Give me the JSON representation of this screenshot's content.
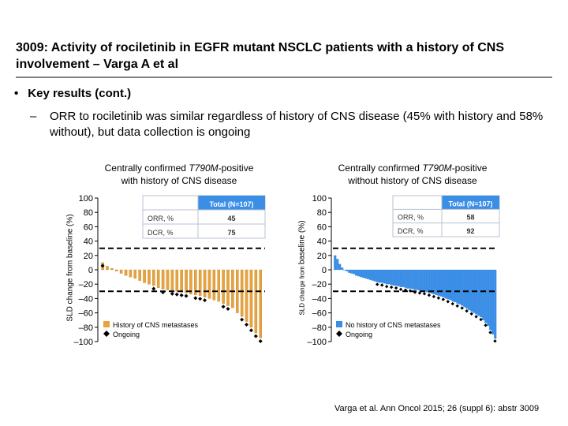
{
  "title": "3009: Activity of rociletinib in EGFR mutant NSCLC patients with a history of CNS involvement – Varga A et al",
  "bullet": "Key results (cont.)",
  "sub_bullet": "ORR to rociletinib was similar regardless of history of CNS disease (45% with history and 58% without), but data collection is ongoing",
  "citation": "Varga et al. Ann Oncol 2015; 26 (suppl 6): abstr 3009",
  "chart_data": [
    {
      "type": "bar",
      "title_prefix": "Centrally confirmed ",
      "title_italic": "T790M",
      "title_suffix": "-positive",
      "title_line2": "with history of CNS disease",
      "ylabel": "SLD change from baseline (%)",
      "ylim": [
        -100,
        100
      ],
      "yticks": [
        "100",
        "80",
        "60",
        "40",
        "20",
        "0",
        "–20",
        "–40",
        "–60",
        "–80",
        "–100"
      ],
      "reference_lines": [
        30,
        -30
      ],
      "legend": [
        "History of CNS metastases",
        "Ongoing"
      ],
      "bar_color": "#E8A33C",
      "series": [
        {
          "name": "History of CNS metastases",
          "values": [
            10,
            5,
            2,
            -2,
            -5,
            -8,
            -10,
            -12,
            -15,
            -18,
            -20,
            -22,
            -25,
            -27,
            -28,
            -29,
            -30,
            -31,
            -32,
            -34,
            -35,
            -36,
            -38,
            -40,
            -42,
            -44,
            -47,
            -50,
            -53,
            -60,
            -65,
            -72,
            -80,
            -88,
            -95
          ]
        }
      ],
      "ongoing": [
        1,
        0,
        0,
        0,
        0,
        0,
        0,
        0,
        0,
        0,
        0,
        1,
        0,
        1,
        0,
        1,
        1,
        1,
        1,
        0,
        1,
        1,
        1,
        0,
        0,
        0,
        1,
        1,
        0,
        0,
        1,
        1,
        1,
        1,
        1
      ],
      "table": {
        "header": "Total (N=107)",
        "rows": [
          {
            "label": "ORR, %",
            "value": "45"
          },
          {
            "label": "DCR, %",
            "value": "75"
          }
        ]
      }
    },
    {
      "type": "bar",
      "title_prefix": "Centrally confirmed ",
      "title_italic": "T790M",
      "title_suffix": "-positive",
      "title_line2": "without history of CNS disease",
      "ylabel_a": "SLD change from ",
      "ylabel_b": "baseline (%)",
      "ylim": [
        -100,
        100
      ],
      "yticks": [
        "100",
        "80",
        "60",
        "40",
        "20",
        "0",
        "–20",
        "–40",
        "–60",
        "–80",
        "–100"
      ],
      "reference_lines": [
        30,
        -30
      ],
      "legend": [
        "No history of CNS metastases",
        "Ongoing"
      ],
      "bar_color": "#3B8EE6",
      "series": [
        {
          "name": "No history of CNS metastases",
          "values": [
            20,
            15,
            8,
            3,
            0,
            -2,
            -4,
            -5,
            -6,
            -8,
            -9,
            -10,
            -11,
            -12,
            -13,
            -14,
            -15,
            -16,
            -17,
            -18,
            -18,
            -19,
            -20,
            -20,
            -21,
            -22,
            -22,
            -23,
            -24,
            -24,
            -25,
            -26,
            -26,
            -27,
            -28,
            -28,
            -29,
            -30,
            -30,
            -31,
            -32,
            -33,
            -34,
            -35,
            -36,
            -37,
            -38,
            -40,
            -41,
            -42,
            -44,
            -45,
            -47,
            -48,
            -50,
            -52,
            -54,
            -56,
            -58,
            -60,
            -62,
            -64,
            -66,
            -70,
            -74,
            -78,
            -84,
            -90,
            -96
          ]
        }
      ],
      "table": {
        "header": "Total (N=107)",
        "rows": [
          {
            "label": "ORR, %",
            "value": "58"
          },
          {
            "label": "DCR, %",
            "value": "92"
          }
        ]
      }
    }
  ]
}
